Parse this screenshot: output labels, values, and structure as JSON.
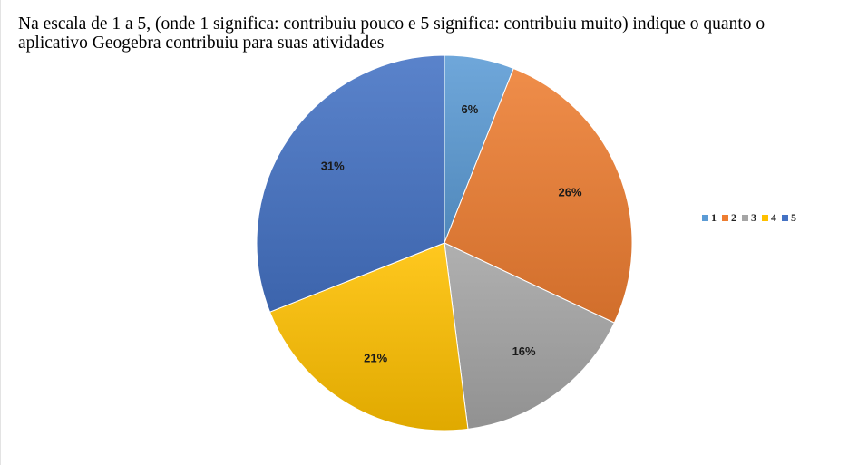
{
  "page": {
    "title": "Na escala de 1 a 5, (onde 1 significa: contribuiu pouco e 5 significa: contribuiu muito) indique o quanto o aplicativo Geogebra contribuiu para suas atividades"
  },
  "chart_data": {
    "type": "pie",
    "title": "Na escala de 1 a 5, (onde 1 significa: contribuiu pouco e 5 significa: contribuiu muito) indique o quanto o aplicativo Geogebra contribuiu para suas atividades",
    "categories": [
      "1",
      "2",
      "3",
      "4",
      "5"
    ],
    "values": [
      6,
      26,
      16,
      21,
      31
    ],
    "labels": [
      "6%",
      "26%",
      "16%",
      "21%",
      "31%"
    ],
    "colors": [
      "#5b9bd5",
      "#ed7d31",
      "#a5a5a5",
      "#ffc000",
      "#4472c4"
    ],
    "legend_position": "right",
    "start_angle": "top",
    "direction": "clockwise"
  }
}
